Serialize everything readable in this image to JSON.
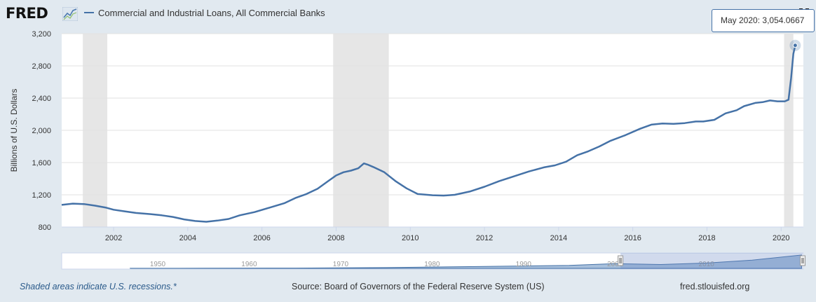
{
  "header": {
    "logo_text": "FRED",
    "logo_icon": "line-graph-icon",
    "series_title": "Commercial and Industrial Loans, All Commercial Banks",
    "fullscreen_icon": "fullscreen-icon"
  },
  "tooltip": {
    "date": "May 2020:",
    "value": "3,054.0667"
  },
  "footer": {
    "recession_note": "Shaded areas indicate U.S. recessions.*",
    "source": "Source: Board of Governors of the Federal Reserve System (US)",
    "site": "fred.stlouisfed.org"
  },
  "colors": {
    "line": "#4572a7",
    "recession": "#e6e6e6",
    "background": "#e1e9f0",
    "plot": "#ffffff"
  },
  "navigator": {
    "labels": [
      "1950",
      "1960",
      "1970",
      "1980",
      "1990",
      "2000",
      "2010"
    ]
  },
  "chart_data": {
    "type": "line",
    "ylabel": "Billions of U.S. Dollars",
    "xlim": [
      2000.6,
      2020.6
    ],
    "ylim": [
      800,
      3200
    ],
    "yticks": [
      800,
      1200,
      1600,
      2000,
      2400,
      2800,
      3200
    ],
    "ytick_labels": [
      "800",
      "1,200",
      "1,600",
      "2,000",
      "2,400",
      "2,800",
      "3,200"
    ],
    "xticks": [
      2002,
      2004,
      2006,
      2008,
      2010,
      2012,
      2014,
      2016,
      2018,
      2020
    ],
    "xtick_labels": [
      "2002",
      "2004",
      "2006",
      "2008",
      "2010",
      "2012",
      "2014",
      "2016",
      "2018",
      "2020"
    ],
    "recessions": [
      [
        2001.17,
        2001.83
      ],
      [
        2007.92,
        2009.42
      ],
      [
        2020.08,
        2020.33
      ]
    ],
    "series": [
      {
        "x": [
          2000.6,
          2000.9,
          2001.2,
          2001.5,
          2001.8,
          2002.0,
          2002.3,
          2002.6,
          2003.0,
          2003.3,
          2003.6,
          2003.9,
          2004.2,
          2004.5,
          2004.8,
          2005.1,
          2005.4,
          2005.8,
          2006.2,
          2006.6,
          2006.9,
          2007.2,
          2007.5,
          2007.8,
          2008.0,
          2008.2,
          2008.4,
          2008.6,
          2008.75,
          2008.85,
          2009.0,
          2009.3,
          2009.6,
          2009.9,
          2010.2,
          2010.6,
          2010.9,
          2011.2,
          2011.6,
          2012.0,
          2012.4,
          2012.8,
          2013.2,
          2013.6,
          2013.9,
          2014.2,
          2014.5,
          2014.8,
          2015.1,
          2015.4,
          2015.8,
          2016.2,
          2016.5,
          2016.8,
          2017.1,
          2017.4,
          2017.7,
          2017.9,
          2018.2,
          2018.5,
          2018.8,
          2019.0,
          2019.3,
          2019.5,
          2019.7,
          2019.9,
          2020.1,
          2020.2,
          2020.27,
          2020.33,
          2020.38
        ],
        "y": [
          1075,
          1090,
          1085,
          1065,
          1040,
          1015,
          995,
          975,
          960,
          945,
          925,
          895,
          875,
          865,
          880,
          900,
          945,
          985,
          1040,
          1095,
          1160,
          1210,
          1275,
          1375,
          1440,
          1480,
          1500,
          1530,
          1590,
          1575,
          1545,
          1480,
          1370,
          1280,
          1210,
          1195,
          1190,
          1200,
          1240,
          1300,
          1370,
          1430,
          1490,
          1540,
          1565,
          1610,
          1690,
          1740,
          1800,
          1870,
          1940,
          2020,
          2070,
          2085,
          2080,
          2090,
          2110,
          2110,
          2130,
          2210,
          2250,
          2300,
          2340,
          2350,
          2370,
          2360,
          2360,
          2380,
          2650,
          2950,
          3054.0667
        ]
      }
    ]
  }
}
